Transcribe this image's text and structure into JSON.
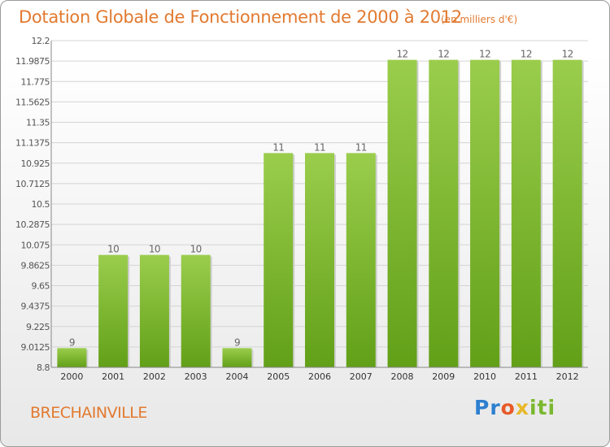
{
  "title": "Dotation Globale de Fonctionnement de 2000 à 2012",
  "unit_note": "(en milliers d'€)",
  "city": "BRECHAINVILLE",
  "logo": {
    "text": "Proxiti"
  },
  "colors": {
    "accent": "#e27a30",
    "bar_top": "#9acd4c",
    "bar_bottom": "#62a018"
  },
  "chart_data": {
    "type": "bar",
    "title": "Dotation Globale de Fonctionnement de 2000 à 2012",
    "categories": [
      "2000",
      "2001",
      "2002",
      "2003",
      "2004",
      "2005",
      "2006",
      "2007",
      "2008",
      "2009",
      "2010",
      "2011",
      "2012"
    ],
    "values": [
      9,
      10,
      10,
      10,
      9,
      11,
      11,
      11,
      12,
      12,
      12,
      12,
      12
    ],
    "bar_heights": [
      9.0,
      9.97,
      9.97,
      9.97,
      9.0,
      11.03,
      11.03,
      11.03,
      12.0,
      12.0,
      12.0,
      12.0,
      12.0
    ],
    "data_labels": [
      "9",
      "10",
      "10",
      "10",
      "9",
      "11",
      "11",
      "11",
      "12",
      "12",
      "12",
      "12",
      "12"
    ],
    "ylim": [
      8.8,
      12.2
    ],
    "yticks": [
      "12.2",
      "11.9875",
      "11.775",
      "11.5625",
      "11.35",
      "11.1375",
      "10.925",
      "10.7125",
      "10.5",
      "10.2875",
      "10.075",
      "9.8625",
      "9.65",
      "9.4375",
      "9.225",
      "9.0125",
      "8.8"
    ],
    "xlabel": "",
    "ylabel": "",
    "grid": true
  }
}
